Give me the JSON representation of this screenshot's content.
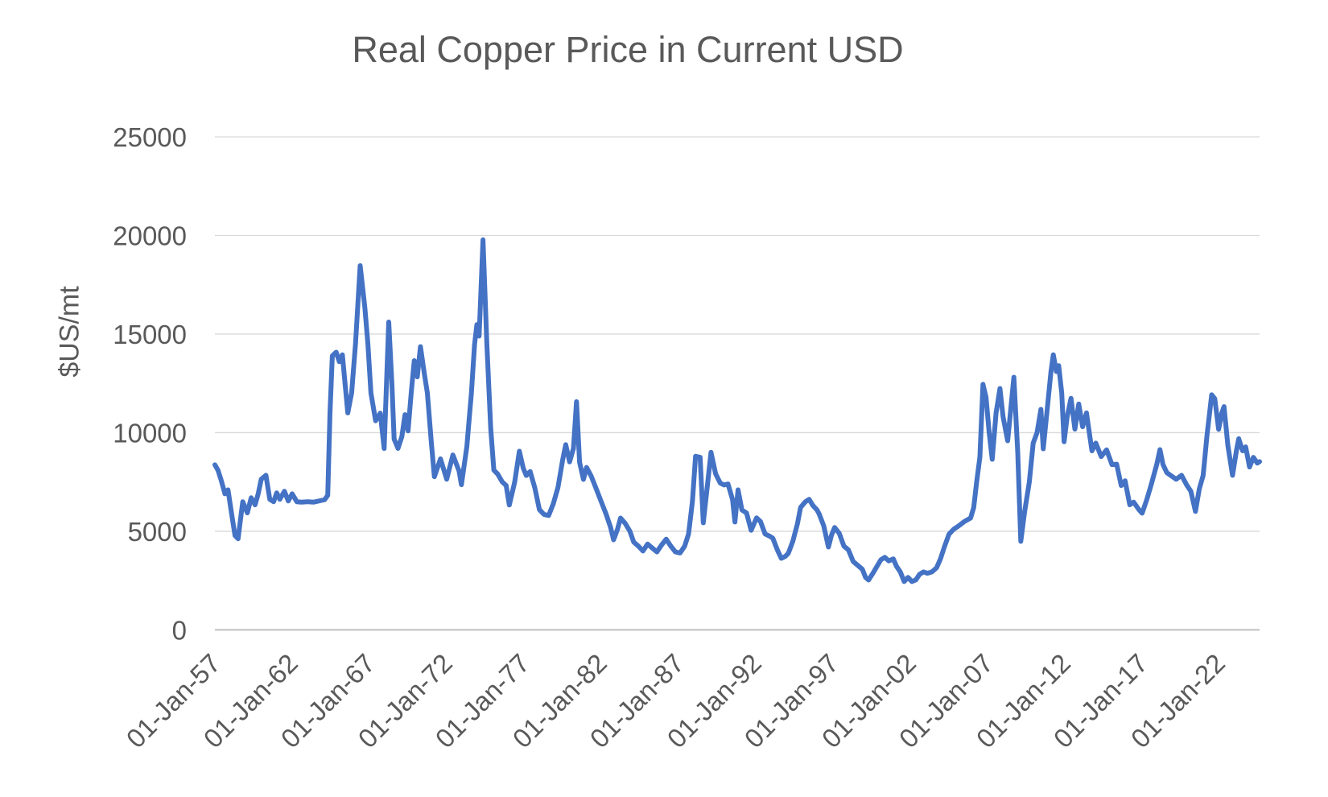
{
  "colors": {
    "line": "#4472C4",
    "text": "#595959",
    "gridline": "#D9D9D9",
    "axis_line": "#BFBFBF",
    "background": "#FFFFFF"
  },
  "chart_data": {
    "type": "line",
    "title": "Real Copper Price in Current USD",
    "xlabel": "",
    "ylabel": "$US/mt",
    "ylim": [
      0,
      25000
    ],
    "yticks": [
      0,
      5000,
      10000,
      15000,
      20000,
      25000
    ],
    "ytick_labels": [
      "0",
      "5000",
      "10000",
      "15000",
      "20000",
      "25000"
    ],
    "x_domain_years": [
      1957.0,
      2024.6
    ],
    "xtick_labels": [
      "01-Jan-57",
      "01-Jan-62",
      "01-Jan-67",
      "01-Jan-72",
      "01-Jan-77",
      "01-Jan-82",
      "01-Jan-87",
      "01-Jan-92",
      "01-Jan-97",
      "01-Jan-02",
      "01-Jan-07",
      "01-Jan-12",
      "01-Jan-17",
      "01-Jan-22"
    ],
    "xtick_years": [
      1957,
      1962,
      1967,
      1972,
      1977,
      1982,
      1987,
      1992,
      1997,
      2002,
      2007,
      2012,
      2017,
      2022
    ],
    "grid": "horizontal",
    "legend": "none",
    "series": [
      {
        "name": "Real Copper Price",
        "color": "#4472C4",
        "points": [
          [
            1957.0,
            8370
          ],
          [
            1957.2,
            8100
          ],
          [
            1957.4,
            7600
          ],
          [
            1957.65,
            6900
          ],
          [
            1957.85,
            7100
          ],
          [
            1958.1,
            5800
          ],
          [
            1958.3,
            4780
          ],
          [
            1958.5,
            4620
          ],
          [
            1958.8,
            6500
          ],
          [
            1959.1,
            5930
          ],
          [
            1959.35,
            6700
          ],
          [
            1959.6,
            6340
          ],
          [
            1959.8,
            6900
          ],
          [
            1960.0,
            7640
          ],
          [
            1960.3,
            7840
          ],
          [
            1960.55,
            6620
          ],
          [
            1960.8,
            6500
          ],
          [
            1961.0,
            6950
          ],
          [
            1961.2,
            6620
          ],
          [
            1961.5,
            7030
          ],
          [
            1961.75,
            6540
          ],
          [
            1962.0,
            6900
          ],
          [
            1962.3,
            6500
          ],
          [
            1962.6,
            6480
          ],
          [
            1963.0,
            6500
          ],
          [
            1963.4,
            6480
          ],
          [
            1963.8,
            6550
          ],
          [
            1964.1,
            6600
          ],
          [
            1964.3,
            6820
          ],
          [
            1964.45,
            11000
          ],
          [
            1964.6,
            13900
          ],
          [
            1964.85,
            14080
          ],
          [
            1965.05,
            13600
          ],
          [
            1965.25,
            13950
          ],
          [
            1965.6,
            11000
          ],
          [
            1965.85,
            12010
          ],
          [
            1966.1,
            14500
          ],
          [
            1966.4,
            18470
          ],
          [
            1966.7,
            16350
          ],
          [
            1966.9,
            14500
          ],
          [
            1967.1,
            12000
          ],
          [
            1967.4,
            10600
          ],
          [
            1967.7,
            10990
          ],
          [
            1967.95,
            9200
          ],
          [
            1968.25,
            15610
          ],
          [
            1968.45,
            12500
          ],
          [
            1968.6,
            9670
          ],
          [
            1968.85,
            9200
          ],
          [
            1969.1,
            9800
          ],
          [
            1969.3,
            10910
          ],
          [
            1969.5,
            10090
          ],
          [
            1969.7,
            12010
          ],
          [
            1969.9,
            13650
          ],
          [
            1970.1,
            12830
          ],
          [
            1970.3,
            14360
          ],
          [
            1970.55,
            13000
          ],
          [
            1970.75,
            12010
          ],
          [
            1971.0,
            9560
          ],
          [
            1971.2,
            7770
          ],
          [
            1971.6,
            8670
          ],
          [
            1972.0,
            7640
          ],
          [
            1972.4,
            8870
          ],
          [
            1972.8,
            8050
          ],
          [
            1972.95,
            7360
          ],
          [
            1973.3,
            9280
          ],
          [
            1973.6,
            12010
          ],
          [
            1973.8,
            14460
          ],
          [
            1973.95,
            15480
          ],
          [
            1974.1,
            14900
          ],
          [
            1974.35,
            19780
          ],
          [
            1974.6,
            14500
          ],
          [
            1974.85,
            10220
          ],
          [
            1975.05,
            8100
          ],
          [
            1975.3,
            7900
          ],
          [
            1975.6,
            7500
          ],
          [
            1975.85,
            7320
          ],
          [
            1976.05,
            6330
          ],
          [
            1976.4,
            7500
          ],
          [
            1976.7,
            9060
          ],
          [
            1976.95,
            8200
          ],
          [
            1977.15,
            7830
          ],
          [
            1977.4,
            8030
          ],
          [
            1977.7,
            7200
          ],
          [
            1978.0,
            6100
          ],
          [
            1978.3,
            5850
          ],
          [
            1978.6,
            5800
          ],
          [
            1978.9,
            6400
          ],
          [
            1979.2,
            7230
          ],
          [
            1979.5,
            8600
          ],
          [
            1979.7,
            9390
          ],
          [
            1979.95,
            8520
          ],
          [
            1980.2,
            9200
          ],
          [
            1980.4,
            11570
          ],
          [
            1980.6,
            8500
          ],
          [
            1980.85,
            7630
          ],
          [
            1981.05,
            8240
          ],
          [
            1981.35,
            7800
          ],
          [
            1981.7,
            7100
          ],
          [
            1982.0,
            6500
          ],
          [
            1982.3,
            5900
          ],
          [
            1982.6,
            5200
          ],
          [
            1982.8,
            4570
          ],
          [
            1983.05,
            5100
          ],
          [
            1983.25,
            5670
          ],
          [
            1983.55,
            5400
          ],
          [
            1983.85,
            5000
          ],
          [
            1984.1,
            4450
          ],
          [
            1984.4,
            4250
          ],
          [
            1984.7,
            4000
          ],
          [
            1985.0,
            4350
          ],
          [
            1985.3,
            4150
          ],
          [
            1985.6,
            3950
          ],
          [
            1985.9,
            4300
          ],
          [
            1986.2,
            4600
          ],
          [
            1986.5,
            4250
          ],
          [
            1986.8,
            3950
          ],
          [
            1987.1,
            3900
          ],
          [
            1987.4,
            4250
          ],
          [
            1987.65,
            4860
          ],
          [
            1987.9,
            6500
          ],
          [
            1988.1,
            8800
          ],
          [
            1988.4,
            8750
          ],
          [
            1988.6,
            5430
          ],
          [
            1988.85,
            7200
          ],
          [
            1989.1,
            9000
          ],
          [
            1989.4,
            7920
          ],
          [
            1989.7,
            7440
          ],
          [
            1989.95,
            7350
          ],
          [
            1990.2,
            7400
          ],
          [
            1990.5,
            6600
          ],
          [
            1990.65,
            5470
          ],
          [
            1990.85,
            7100
          ],
          [
            1991.1,
            6080
          ],
          [
            1991.4,
            5930
          ],
          [
            1991.7,
            5050
          ],
          [
            1992.05,
            5680
          ],
          [
            1992.3,
            5500
          ],
          [
            1992.6,
            4860
          ],
          [
            1992.9,
            4750
          ],
          [
            1993.1,
            4650
          ],
          [
            1993.4,
            4050
          ],
          [
            1993.65,
            3630
          ],
          [
            1993.9,
            3720
          ],
          [
            1994.1,
            3880
          ],
          [
            1994.4,
            4500
          ],
          [
            1994.7,
            5400
          ],
          [
            1994.9,
            6210
          ],
          [
            1995.2,
            6490
          ],
          [
            1995.45,
            6620
          ],
          [
            1995.7,
            6300
          ],
          [
            1995.95,
            6090
          ],
          [
            1996.1,
            5880
          ],
          [
            1996.4,
            5270
          ],
          [
            1996.7,
            4200
          ],
          [
            1996.9,
            4800
          ],
          [
            1997.1,
            5190
          ],
          [
            1997.4,
            4900
          ],
          [
            1997.7,
            4250
          ],
          [
            1998.0,
            4050
          ],
          [
            1998.3,
            3470
          ],
          [
            1998.6,
            3270
          ],
          [
            1998.9,
            3070
          ],
          [
            1999.1,
            2660
          ],
          [
            1999.3,
            2530
          ],
          [
            1999.6,
            2900
          ],
          [
            1999.9,
            3300
          ],
          [
            2000.1,
            3560
          ],
          [
            2000.35,
            3680
          ],
          [
            2000.6,
            3500
          ],
          [
            2000.9,
            3600
          ],
          [
            2001.1,
            3230
          ],
          [
            2001.35,
            2940
          ],
          [
            2001.6,
            2450
          ],
          [
            2001.85,
            2660
          ],
          [
            2002.1,
            2450
          ],
          [
            2002.35,
            2530
          ],
          [
            2002.6,
            2820
          ],
          [
            2002.85,
            2940
          ],
          [
            2003.1,
            2870
          ],
          [
            2003.4,
            2940
          ],
          [
            2003.7,
            3150
          ],
          [
            2003.95,
            3600
          ],
          [
            2004.2,
            4200
          ],
          [
            2004.5,
            4850
          ],
          [
            2004.8,
            5100
          ],
          [
            2005.1,
            5260
          ],
          [
            2005.5,
            5500
          ],
          [
            2005.9,
            5670
          ],
          [
            2006.1,
            6200
          ],
          [
            2006.3,
            7550
          ],
          [
            2006.5,
            8770
          ],
          [
            2006.7,
            12450
          ],
          [
            2006.9,
            11800
          ],
          [
            2007.1,
            10000
          ],
          [
            2007.3,
            8650
          ],
          [
            2007.55,
            11000
          ],
          [
            2007.8,
            12240
          ],
          [
            2008.0,
            10800
          ],
          [
            2008.3,
            9590
          ],
          [
            2008.7,
            12810
          ],
          [
            2008.95,
            9000
          ],
          [
            2009.15,
            4490
          ],
          [
            2009.4,
            6000
          ],
          [
            2009.7,
            7500
          ],
          [
            2009.95,
            9470
          ],
          [
            2010.2,
            10000
          ],
          [
            2010.45,
            11180
          ],
          [
            2010.6,
            9180
          ],
          [
            2010.9,
            11500
          ],
          [
            2011.1,
            13100
          ],
          [
            2011.25,
            13950
          ],
          [
            2011.45,
            13100
          ],
          [
            2011.6,
            13400
          ],
          [
            2011.8,
            12000
          ],
          [
            2011.95,
            9540
          ],
          [
            2012.15,
            10800
          ],
          [
            2012.4,
            11740
          ],
          [
            2012.65,
            10180
          ],
          [
            2012.9,
            11450
          ],
          [
            2013.15,
            10300
          ],
          [
            2013.4,
            11000
          ],
          [
            2013.75,
            9080
          ],
          [
            2014.0,
            9470
          ],
          [
            2014.35,
            8790
          ],
          [
            2014.7,
            9130
          ],
          [
            2015.05,
            8380
          ],
          [
            2015.35,
            8400
          ],
          [
            2015.65,
            7320
          ],
          [
            2015.9,
            7560
          ],
          [
            2016.2,
            6340
          ],
          [
            2016.45,
            6480
          ],
          [
            2016.8,
            6090
          ],
          [
            2017.0,
            5920
          ],
          [
            2017.3,
            6600
          ],
          [
            2017.6,
            7400
          ],
          [
            2017.95,
            8400
          ],
          [
            2018.15,
            9140
          ],
          [
            2018.35,
            8380
          ],
          [
            2018.6,
            7970
          ],
          [
            2019.2,
            7640
          ],
          [
            2019.55,
            7840
          ],
          [
            2019.9,
            7320
          ],
          [
            2020.15,
            7030
          ],
          [
            2020.45,
            6010
          ],
          [
            2020.7,
            7150
          ],
          [
            2020.95,
            7840
          ],
          [
            2021.2,
            9880
          ],
          [
            2021.5,
            11920
          ],
          [
            2021.7,
            11730
          ],
          [
            2021.95,
            10170
          ],
          [
            2022.15,
            10990
          ],
          [
            2022.3,
            11320
          ],
          [
            2022.55,
            9350
          ],
          [
            2022.85,
            7840
          ],
          [
            2023.1,
            9080
          ],
          [
            2023.25,
            9690
          ],
          [
            2023.5,
            9080
          ],
          [
            2023.7,
            9280
          ],
          [
            2023.95,
            8260
          ],
          [
            2024.2,
            8750
          ],
          [
            2024.45,
            8460
          ],
          [
            2024.6,
            8530
          ]
        ]
      }
    ]
  }
}
